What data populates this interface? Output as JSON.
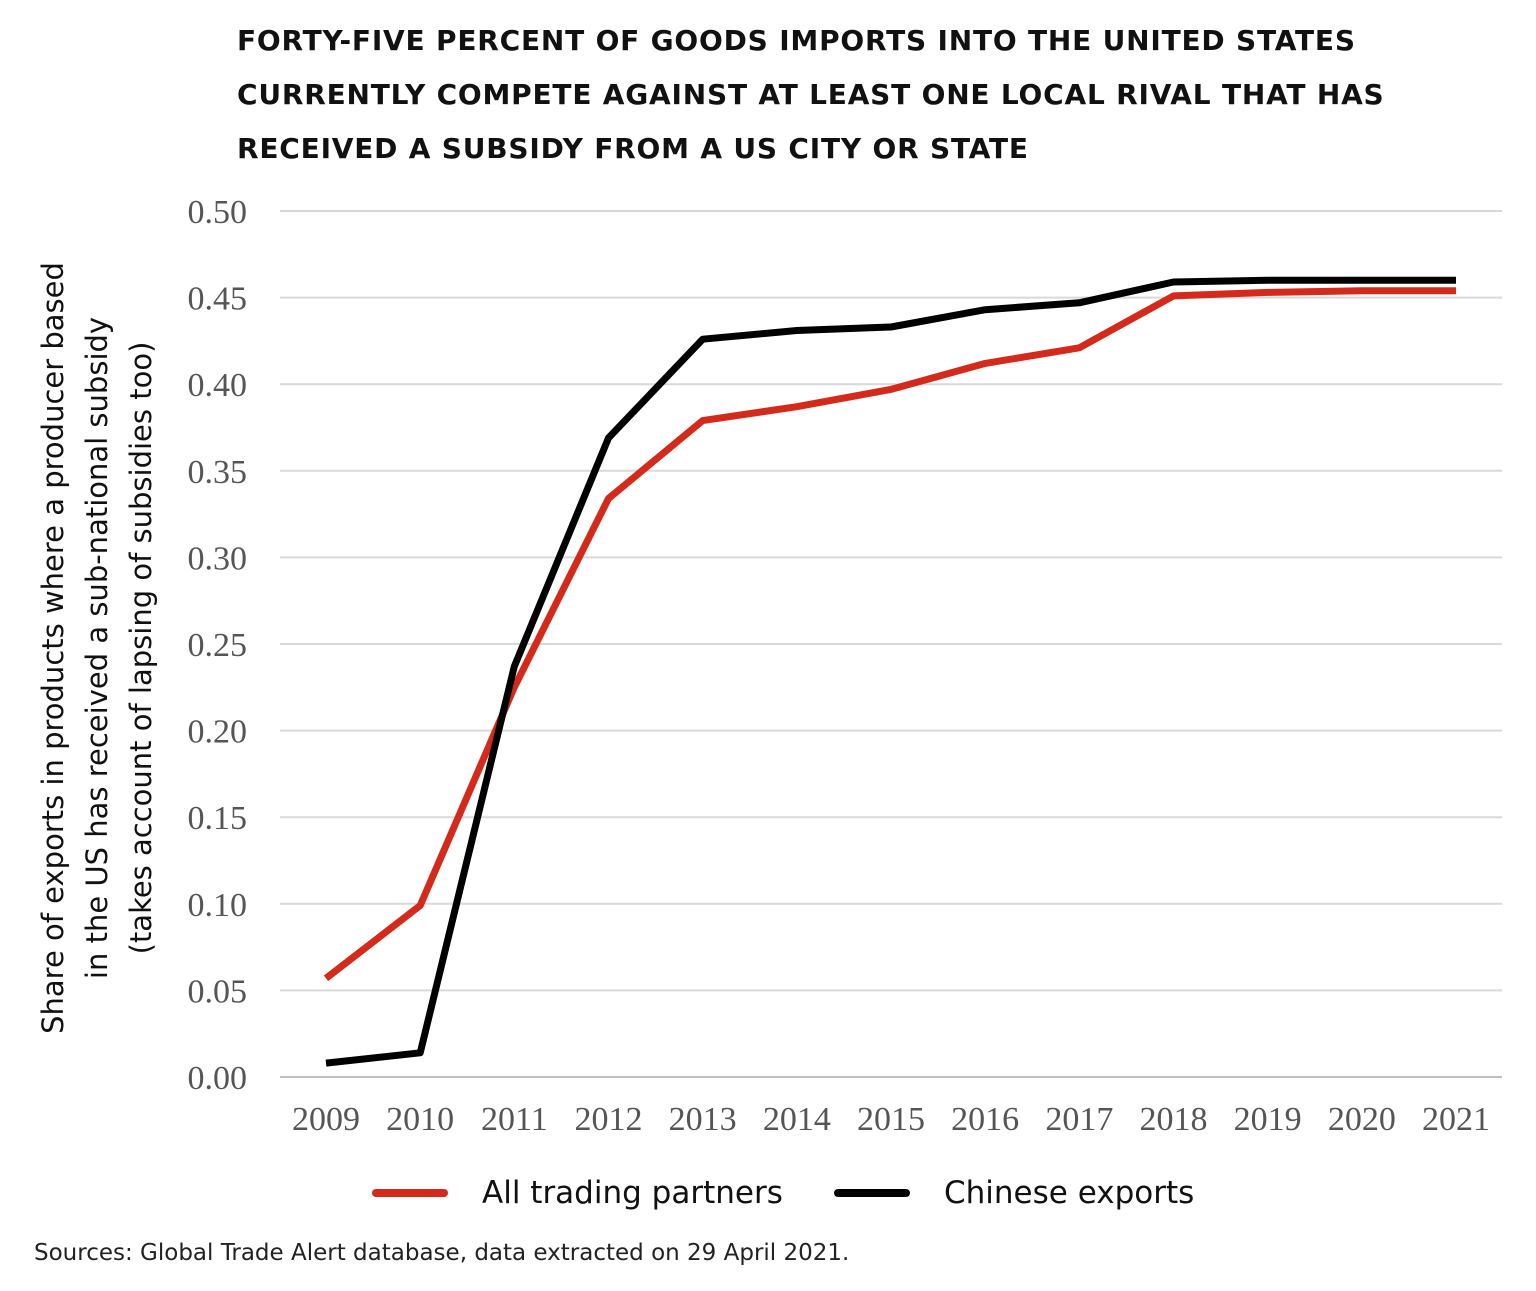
{
  "chart_data": {
    "type": "line",
    "title": "FORTY-FIVE PERCENT OF GOODS IMPORTS INTO THE UNITED STATES CURRENTLY COMPETE AGAINST AT LEAST ONE LOCAL RIVAL THAT HAS RECEIVED A SUBSIDY FROM A US CITY OR STATE",
    "title_lines": [
      "FORTY-FIVE PERCENT OF GOODS IMPORTS INTO THE UNITED STATES",
      "CURRENTLY COMPETE AGAINST AT LEAST ONE LOCAL RIVAL THAT HAS",
      "RECEIVED A SUBSIDY FROM A US CITY OR STATE"
    ],
    "ylabel_lines": [
      "Share of exports in products where a producer based",
      "in the US has received a sub-national subsidy",
      "(takes account of lapsing of subsidies too)"
    ],
    "xlabel": "",
    "categories": [
      "2009",
      "2010",
      "2011",
      "2012",
      "2013",
      "2014",
      "2015",
      "2016",
      "2017",
      "2018",
      "2019",
      "2020",
      "2021"
    ],
    "y_ticks": [
      "0.00",
      "0.05",
      "0.10",
      "0.15",
      "0.20",
      "0.25",
      "0.30",
      "0.35",
      "0.40",
      "0.45",
      "0.50"
    ],
    "ylim": [
      0,
      0.5
    ],
    "grid": true,
    "legend_position": "bottom",
    "series": [
      {
        "name": "All trading partners",
        "color": "#d42a1c",
        "values": [
          0.057,
          0.099,
          0.225,
          0.334,
          0.379,
          0.387,
          0.397,
          0.412,
          0.421,
          0.451,
          0.453,
          0.454,
          0.454
        ]
      },
      {
        "name": "Chinese exports",
        "color": "#000000",
        "values": [
          0.008,
          0.014,
          0.237,
          0.369,
          0.426,
          0.431,
          0.433,
          0.443,
          0.447,
          0.459,
          0.46,
          0.46,
          0.46
        ]
      }
    ]
  },
  "source_note": "Sources: Global Trade Alert database, data extracted on 29 April 2021."
}
